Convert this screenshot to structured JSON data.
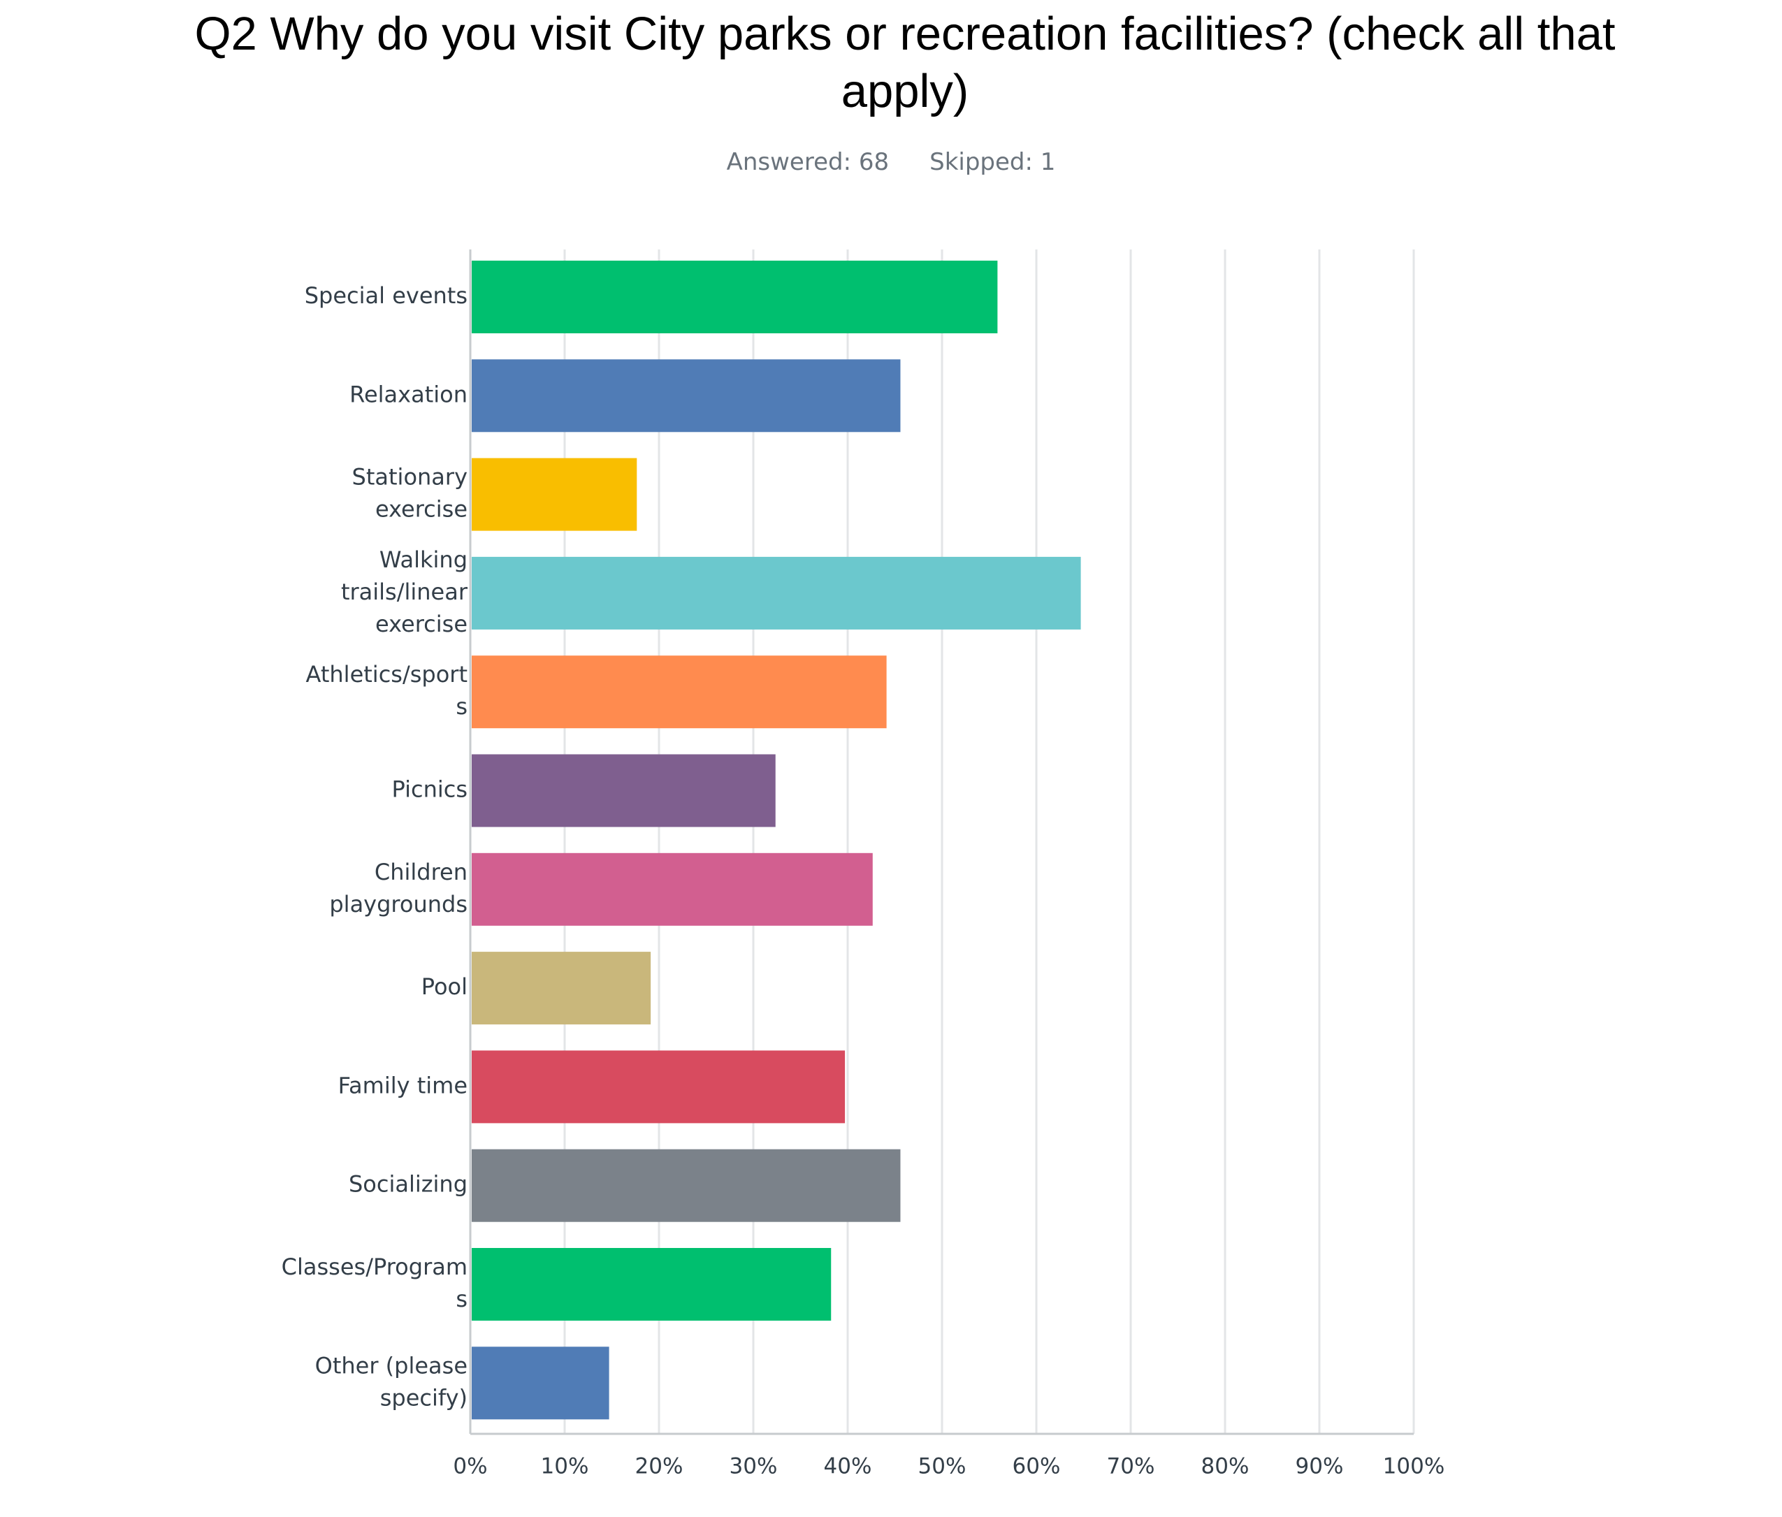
{
  "title": "Q2 Why do you visit City parks or recreation facilities? (check all that apply)",
  "title_lines": [
    "Q2 Why do you visit City parks or recreation facilities? (check all that",
    "apply)"
  ],
  "stats": {
    "answered": "Answered: 68",
    "skipped": "Skipped: 1"
  },
  "chart_data": {
    "type": "bar",
    "orientation": "horizontal",
    "categories": [
      "Special events",
      "Relaxation",
      "Stationary exercise",
      "Walking trails/linear exercise",
      "Athletics/sports",
      "Picnics",
      "Children playgrounds",
      "Pool",
      "Family time",
      "Socializing",
      "Classes/Programs",
      "Other (please specify)"
    ],
    "category_label_lines": [
      [
        "Special events"
      ],
      [
        "Relaxation"
      ],
      [
        "Stationary",
        "exercise"
      ],
      [
        "Walking",
        "trails/linear",
        "exercise"
      ],
      [
        "Athletics/sport",
        "s"
      ],
      [
        "Picnics"
      ],
      [
        "Children",
        "playgrounds"
      ],
      [
        "Pool"
      ],
      [
        "Family time"
      ],
      [
        "Socializing"
      ],
      [
        "Classes/Program",
        "s"
      ],
      [
        "Other (please",
        "specify)"
      ]
    ],
    "values": [
      55.88,
      45.59,
      17.65,
      64.71,
      44.12,
      32.35,
      42.65,
      19.12,
      39.71,
      45.59,
      38.24,
      14.71
    ],
    "colors": [
      "#00bf6f",
      "#507cb6",
      "#f9be00",
      "#6bc8cd",
      "#ff8b4f",
      "#7f5f8f",
      "#d25f90",
      "#c9b77b",
      "#d84b5f",
      "#7b828a",
      "#00bf6f",
      "#507cb6"
    ],
    "x_ticks": [
      "0%",
      "10%",
      "20%",
      "30%",
      "40%",
      "50%",
      "60%",
      "70%",
      "80%",
      "90%",
      "100%"
    ],
    "xlim": [
      0,
      100
    ],
    "grid": true,
    "legend": "none"
  }
}
